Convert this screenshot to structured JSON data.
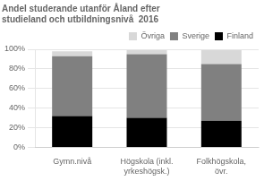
{
  "chart_data": {
    "type": "bar",
    "title": "Andel studerande utanför Åland efter\nstudieland och utbildningsnivå  2016",
    "categories": [
      "Gymn.nivå",
      "Högskola (inkl.\nyrkeshögsk.)",
      "Folkhögskola,\növr."
    ],
    "series": [
      {
        "name": "Finland",
        "color": "#000000",
        "values": [
          32,
          30,
          27
        ]
      },
      {
        "name": "Sverige",
        "color": "#808080",
        "values": [
          61,
          65,
          58
        ]
      },
      {
        "name": "Övriga",
        "color": "#d8d8d8",
        "values": [
          5,
          4,
          14
        ]
      }
    ],
    "stacked": true,
    "ylim": [
      0,
      100
    ],
    "yticks": [
      {
        "value": 0,
        "label": "0%"
      },
      {
        "value": 20,
        "label": "20%"
      },
      {
        "value": 40,
        "label": "40%"
      },
      {
        "value": 60,
        "label": "60%"
      },
      {
        "value": 80,
        "label": "80%"
      },
      {
        "value": 100,
        "label": "100%"
      }
    ],
    "grid": true,
    "legend": "upper right"
  }
}
